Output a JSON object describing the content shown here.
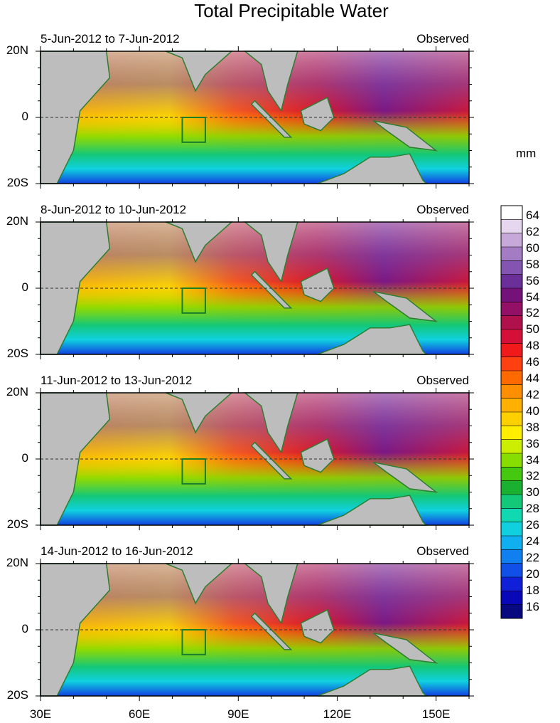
{
  "title": "Total Precipitable Water",
  "unit": "mm",
  "panels": [
    {
      "period": "5-Jun-2012 to 7-Jun-2012",
      "type": "Observed"
    },
    {
      "period": "8-Jun-2012 to 10-Jun-2012",
      "type": "Observed"
    },
    {
      "period": "11-Jun-2012 to 13-Jun-2012",
      "type": "Observed"
    },
    {
      "period": "14-Jun-2012 to 16-Jun-2012",
      "type": "Observed"
    }
  ],
  "lat_labels": [
    "20N",
    "0",
    "20S"
  ],
  "lon_labels": [
    "30E",
    "60E",
    "90E",
    "120E",
    "150E"
  ],
  "colorbar": {
    "labels": [
      "64",
      "62",
      "60",
      "58",
      "56",
      "54",
      "52",
      "50",
      "48",
      "46",
      "44",
      "42",
      "40",
      "38",
      "36",
      "34",
      "32",
      "30",
      "28",
      "26",
      "24",
      "22",
      "20",
      "18",
      "16"
    ],
    "colors": [
      "#ffffff",
      "#e6d7ee",
      "#c7a9d9",
      "#a47cc4",
      "#8455b0",
      "#6b2f99",
      "#74127a",
      "#931066",
      "#b0104c",
      "#d51038",
      "#f01a1a",
      "#ff4010",
      "#ff6a00",
      "#ff8f00",
      "#ffb000",
      "#ffd000",
      "#ffee00",
      "#ccee00",
      "#88dd00",
      "#44c810",
      "#1ab030",
      "#13c878",
      "#10d8b0",
      "#10d0e0",
      "#10b0f0",
      "#1080f0",
      "#1050e8",
      "#1020d8",
      "#0808b8",
      "#080880"
    ]
  }
}
